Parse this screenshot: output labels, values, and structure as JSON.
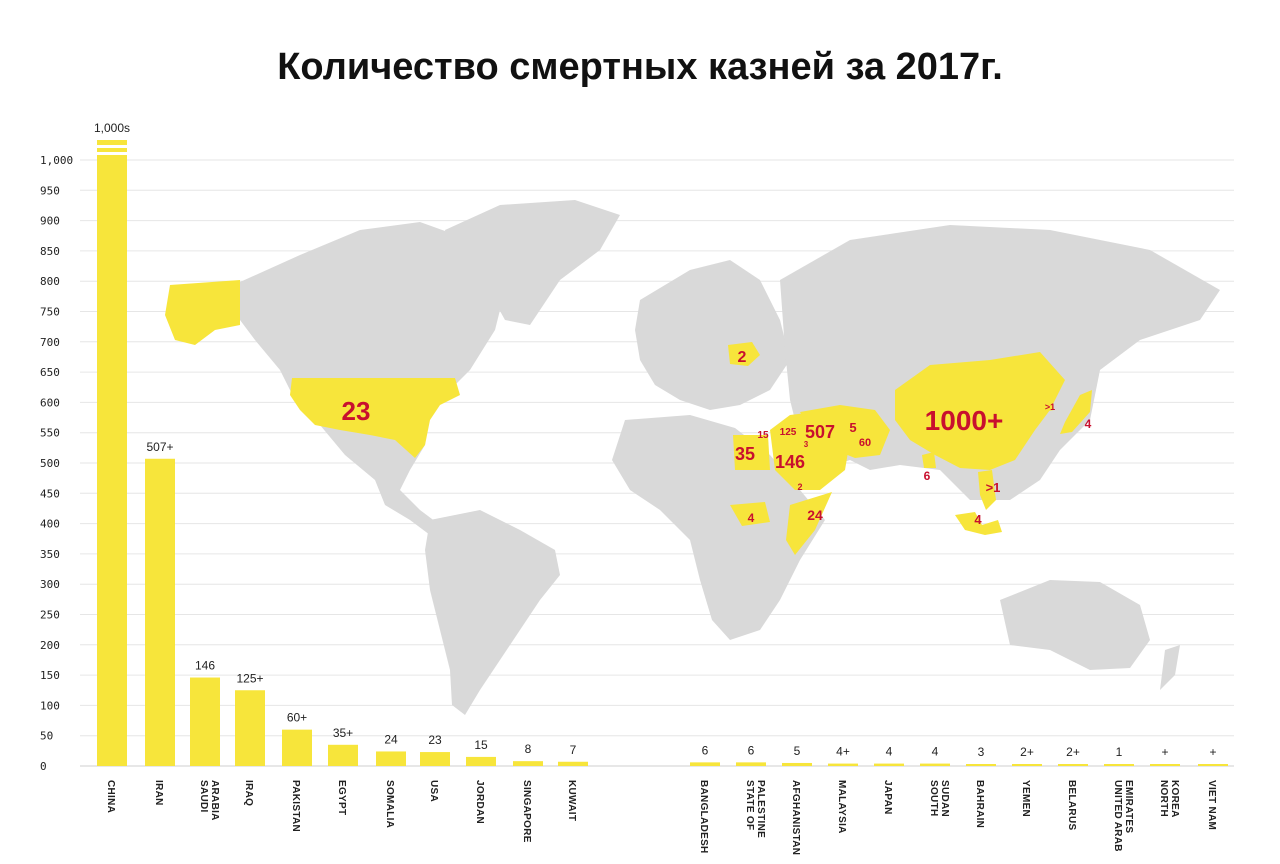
{
  "title": "Количество смертных казней за 2017г.",
  "colors": {
    "bar": "#f7e53b",
    "map_land": "#d9d9d9",
    "map_highlight": "#f7e53b",
    "map_label": "#c8102e",
    "grid": "#e6e6e6"
  },
  "chart_data": {
    "type": "bar",
    "title": "Количество смертных казней за 2017г.",
    "ylim": [
      0,
      1000
    ],
    "yticks": [
      "0",
      "50",
      "100",
      "150",
      "200",
      "250",
      "300",
      "350",
      "400",
      "450",
      "500",
      "550",
      "600",
      "650",
      "700",
      "750",
      "800",
      "850",
      "900",
      "950",
      "1,000"
    ],
    "grid": true,
    "bars": [
      {
        "category": [
          "CHINA"
        ],
        "value": 1000,
        "label": "1,000s",
        "group": 1
      },
      {
        "category": [
          "IRAN"
        ],
        "value": 507,
        "label": "507+",
        "group": 1
      },
      {
        "category": [
          "SAUDI",
          "ARABIA"
        ],
        "value": 146,
        "label": "146",
        "group": 1
      },
      {
        "category": [
          "IRAQ"
        ],
        "value": 125,
        "label": "125+",
        "group": 1
      },
      {
        "category": [
          "PAKISTAN"
        ],
        "value": 60,
        "label": "60+",
        "group": 1
      },
      {
        "category": [
          "EGYPT"
        ],
        "value": 35,
        "label": "35+",
        "group": 1
      },
      {
        "category": [
          "SOMALIA"
        ],
        "value": 24,
        "label": "24",
        "group": 1
      },
      {
        "category": [
          "USA"
        ],
        "value": 23,
        "label": "23",
        "group": 1
      },
      {
        "category": [
          "JORDAN"
        ],
        "value": 15,
        "label": "15",
        "group": 1
      },
      {
        "category": [
          "SINGAPORE"
        ],
        "value": 8,
        "label": "8",
        "group": 1
      },
      {
        "category": [
          "KUWAIT"
        ],
        "value": 7,
        "label": "7",
        "group": 1
      },
      {
        "category": [
          "BANGLADESH"
        ],
        "value": 6,
        "label": "6",
        "group": 2
      },
      {
        "category": [
          "STATE OF",
          "PALESTINE"
        ],
        "value": 6,
        "label": "6",
        "group": 2
      },
      {
        "category": [
          "AFGHANISTAN"
        ],
        "value": 5,
        "label": "5",
        "group": 2
      },
      {
        "category": [
          "MALAYSIA"
        ],
        "value": 4,
        "label": "4+",
        "group": 2
      },
      {
        "category": [
          "JAPAN"
        ],
        "value": 4,
        "label": "4",
        "group": 2
      },
      {
        "category": [
          "SOUTH",
          "SUDAN"
        ],
        "value": 4,
        "label": "4",
        "group": 2
      },
      {
        "category": [
          "BAHRAIN"
        ],
        "value": 3,
        "label": "3",
        "group": 2
      },
      {
        "category": [
          "YEMEN"
        ],
        "value": 2,
        "label": "2+",
        "group": 2
      },
      {
        "category": [
          "BELARUS"
        ],
        "value": 2,
        "label": "2+",
        "group": 2
      },
      {
        "category": [
          "UNITED ARAB",
          "EMIRATES"
        ],
        "value": 1,
        "label": "1",
        "group": 2
      },
      {
        "category": [
          "NORTH",
          "KOREA"
        ],
        "value": 0,
        "label": "+",
        "group": 2
      },
      {
        "category": [
          "VIET NAM"
        ],
        "value": 0,
        "label": "+",
        "group": 2
      }
    ],
    "map_labels": [
      "23",
      "2",
      "1000+",
      "507",
      "146",
      "125",
      "35",
      "15",
      "5",
      "60",
      "4",
      "24",
      "4",
      "6",
      ">1",
      "4",
      ">1",
      "3",
      "2"
    ]
  }
}
